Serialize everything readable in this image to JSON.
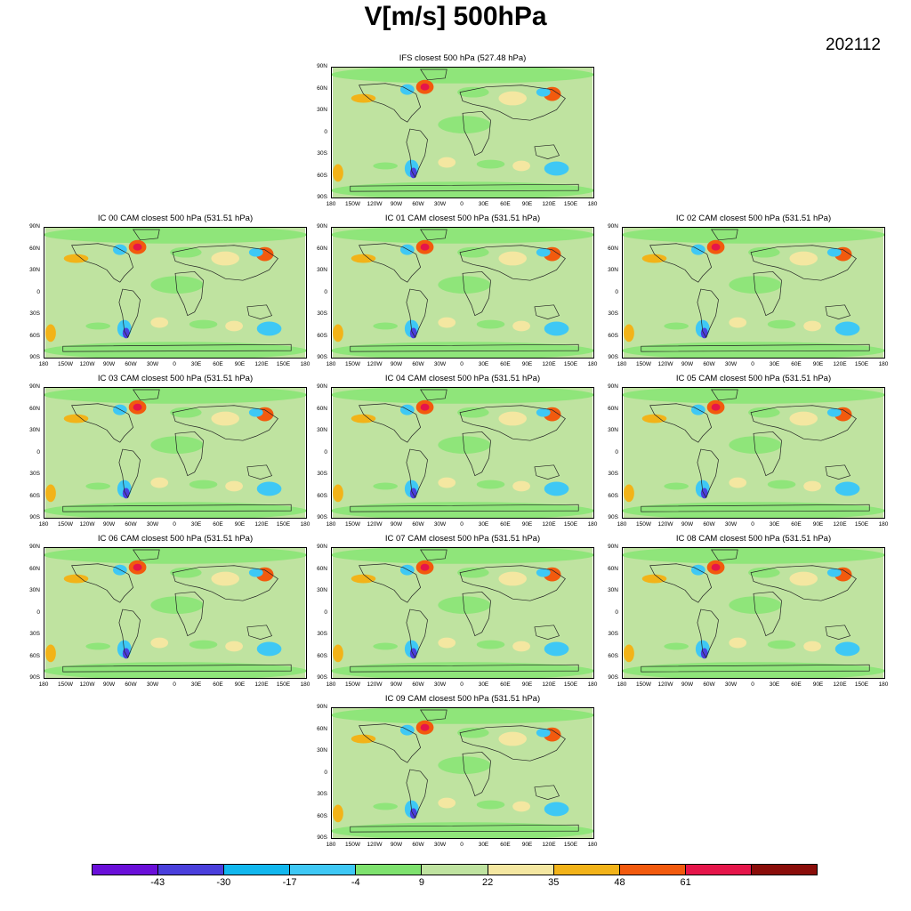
{
  "title": "V[m/s] 500hPa",
  "date": "202112",
  "lat_labels": [
    "90N",
    "60N",
    "30N",
    "0",
    "30S",
    "60S",
    "90S"
  ],
  "lon_labels": [
    "180",
    "150W",
    "120W",
    "90W",
    "60W",
    "30W",
    "0",
    "30E",
    "60E",
    "90E",
    "120E",
    "150E",
    "180"
  ],
  "panels": [
    {
      "title": "IFS closest 500 hPa (527.48 hPa)"
    },
    {
      "title": "IC 00 CAM closest 500 hPa (531.51 hPa)"
    },
    {
      "title": "IC 01 CAM closest 500 hPa (531.51 hPa)"
    },
    {
      "title": "IC 02 CAM closest 500 hPa (531.51 hPa)"
    },
    {
      "title": "IC 03 CAM closest 500 hPa (531.51 hPa)"
    },
    {
      "title": "IC 04 CAM closest 500 hPa (531.51 hPa)"
    },
    {
      "title": "IC 05 CAM closest 500 hPa (531.51 hPa)"
    },
    {
      "title": "IC 06 CAM closest 500 hPa (531.51 hPa)"
    },
    {
      "title": "IC 07 CAM closest 500 hPa (531.51 hPa)"
    },
    {
      "title": "IC 08 CAM closest 500 hPa (531.51 hPa)"
    },
    {
      "title": "IC 09 CAM closest 500 hPa (531.51 hPa)"
    }
  ],
  "colorbar": {
    "colors": [
      "#6a0fd9",
      "#4a3fdc",
      "#11b7ee",
      "#3ec8f5",
      "#7ee26e",
      "#bfe3a0",
      "#f4e7a1",
      "#f2b319",
      "#f25a0e",
      "#e5154a",
      "#8a0d0a"
    ],
    "labels": [
      "-43",
      "-30",
      "-17",
      "-4",
      "9",
      "22",
      "35",
      "48",
      "61"
    ]
  },
  "field_colors": {
    "background": "#bfe3a0",
    "light_green": "#8fe57a",
    "yellow": "#f4e7a1",
    "orange": "#f2b319",
    "red": "#f25a0e",
    "blue": "#3ec8f5",
    "purple": "#4a3fdc"
  }
}
